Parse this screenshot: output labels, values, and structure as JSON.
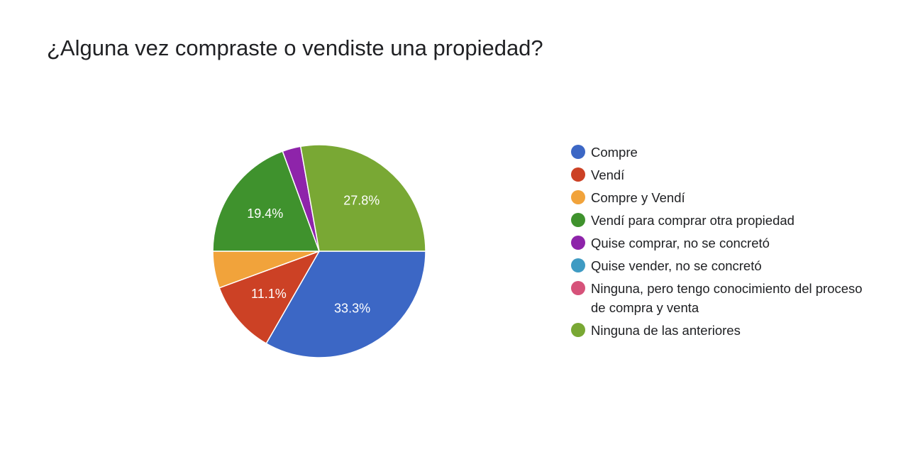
{
  "chart_data": {
    "type": "pie",
    "title": "¿Alguna vez compraste o vendiste una propiedad?",
    "legend_position": "right",
    "slices": [
      {
        "label": "Compre",
        "value": 33.3,
        "display": "33.3%",
        "color": "#3c67c5"
      },
      {
        "label": "Vendí",
        "value": 11.1,
        "display": "11.1%",
        "color": "#cc4125"
      },
      {
        "label": "Compre y Vendí",
        "value": 5.6,
        "display": "",
        "color": "#f1a33b"
      },
      {
        "label": "Vendí para comprar otra propiedad",
        "value": 19.4,
        "display": "19.4%",
        "color": "#3f922d"
      },
      {
        "label": "Quise comprar, no se concretó",
        "value": 2.8,
        "display": "",
        "color": "#8e24aa"
      },
      {
        "label": "Quise vender, no se concretó",
        "value": 0,
        "display": "",
        "color": "#3f9bc3"
      },
      {
        "label": "Ninguna, pero tengo conocimiento del proceso de compra y venta",
        "value": 0,
        "display": "",
        "color": "#d6527a"
      },
      {
        "label": "Ninguna de las anteriores",
        "value": 27.8,
        "display": "27.8%",
        "color": "#79a834"
      }
    ]
  }
}
